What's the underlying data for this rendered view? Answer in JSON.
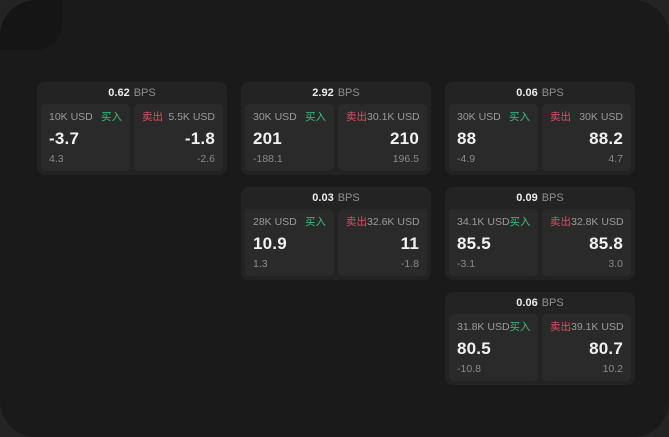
{
  "labels": {
    "bps_unit": "BPS",
    "buy": "买入",
    "sell": "卖出"
  },
  "colors": {
    "buy": "#3cbe7e",
    "sell": "#cf5466",
    "screen_bg": "#1a1a1a",
    "card_bg": "#232323",
    "panel_bg": "#2a2a2a"
  },
  "cards": [
    {
      "bps": "0.62",
      "buy": {
        "size": "10K USD",
        "price": "-3.7",
        "delta": "4.3"
      },
      "sell": {
        "size": "5.5K USD",
        "price": "-1.8",
        "delta": "-2.6"
      }
    },
    {
      "bps": "2.92",
      "buy": {
        "size": "30K USD",
        "price": "201",
        "delta": "-188.1"
      },
      "sell": {
        "size": "30.1K USD",
        "price": "210",
        "delta": "196.5"
      }
    },
    {
      "bps": "0.03",
      "buy": {
        "size": "28K USD",
        "price": "10.9",
        "delta": "1.3"
      },
      "sell": {
        "size": "32.6K USD",
        "price": "11",
        "delta": "-1.8"
      }
    },
    {
      "bps": "0.06",
      "buy": {
        "size": "30K USD",
        "price": "88",
        "delta": "-4.9"
      },
      "sell": {
        "size": "30K USD",
        "price": "88.2",
        "delta": "4.7"
      }
    },
    {
      "bps": "0.09",
      "buy": {
        "size": "34.1K USD",
        "price": "85.5",
        "delta": "-3.1"
      },
      "sell": {
        "size": "32.8K USD",
        "price": "85.8",
        "delta": "3.0"
      }
    },
    {
      "bps": "0.06",
      "buy": {
        "size": "31.8K USD",
        "price": "80.5",
        "delta": "-10.8"
      },
      "sell": {
        "size": "39.1K USD",
        "price": "80.7",
        "delta": "10.2"
      }
    }
  ]
}
